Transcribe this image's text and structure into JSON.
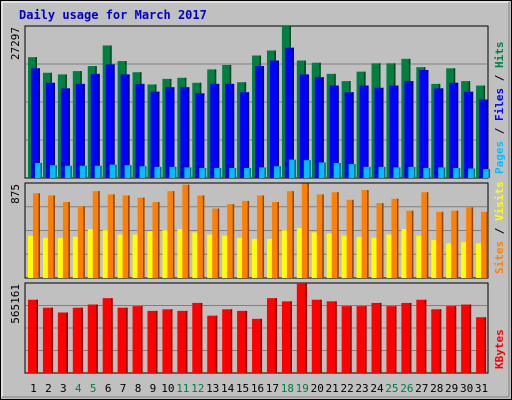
{
  "chart_data": {
    "type": "bar",
    "title": "Daily usage for March 2017",
    "categories": [
      "1",
      "2",
      "3",
      "4",
      "5",
      "6",
      "7",
      "8",
      "9",
      "10",
      "11",
      "12",
      "13",
      "14",
      "15",
      "16",
      "17",
      "18",
      "19",
      "20",
      "21",
      "22",
      "23",
      "24",
      "25",
      "26",
      "27",
      "28",
      "29",
      "30",
      "31"
    ],
    "weekend_days": [
      "4",
      "5",
      "11",
      "12",
      "18",
      "19",
      "25",
      "26"
    ],
    "panels": [
      {
        "name": "pages_files_hits",
        "ymax": 27297,
        "ymax_label": "27297",
        "legend": [
          {
            "label": "Pages",
            "color": "#00c0ff"
          },
          {
            "label": "Files",
            "color": "#0000ff"
          },
          {
            "label": "Hits",
            "color": "#008040"
          }
        ],
        "legend_sep": "/",
        "series": [
          {
            "name": "Hits",
            "color": "#008040",
            "values": [
              21700,
              18900,
              18600,
              19200,
              20100,
              23800,
              21000,
              19000,
              16800,
              17800,
              18000,
              17100,
              19500,
              20300,
              17200,
              22000,
              22900,
              27297,
              21100,
              20700,
              18700,
              17400,
              19100,
              20600,
              20600,
              21400,
              19900,
              16900,
              19700,
              17400,
              16600
            ]
          },
          {
            "name": "Files",
            "color": "#0000ff",
            "values": [
              19700,
              17100,
              16100,
              16900,
              18700,
              20400,
              18600,
              16900,
              15500,
              16300,
              16300,
              15200,
              16900,
              16900,
              15400,
              20100,
              21100,
              23400,
              18600,
              18100,
              16600,
              15400,
              16600,
              16200,
              16600,
              17400,
              19400,
              16100,
              17100,
              15500,
              14100
            ]
          },
          {
            "name": "Pages",
            "color": "#00c0ff",
            "values": [
              2700,
              2300,
              2200,
              2200,
              2200,
              2400,
              2300,
              2100,
              2000,
              2000,
              1900,
              1800,
              1800,
              1800,
              1800,
              1900,
              2100,
              3300,
              3200,
              2800,
              2700,
              2500,
              2000,
              2000,
              1900,
              2000,
              1800,
              1900,
              1800,
              1700,
              1600
            ]
          }
        ]
      },
      {
        "name": "sites_visits",
        "ymax": 875,
        "ymax_label": "875",
        "legend": [
          {
            "label": "Sites",
            "color": "#ff8000"
          },
          {
            "label": "Visits",
            "color": "#ffff00"
          }
        ],
        "legend_sep": "/",
        "series": [
          {
            "name": "Visits",
            "color": "#ffff00",
            "values": [
              390,
              370,
              370,
              380,
              450,
              440,
              400,
              400,
              430,
              440,
              450,
              420,
              400,
              390,
              370,
              360,
              360,
              440,
              460,
              420,
              410,
              390,
              380,
              370,
              400,
              450,
              390,
              350,
              320,
              330,
              320
            ]
          },
          {
            "name": "Sites",
            "color": "#ff8000",
            "values": [
              780,
              760,
              700,
              660,
              800,
              770,
              760,
              740,
              700,
              800,
              860,
              760,
              640,
              680,
              710,
              760,
              700,
              800,
              870,
              770,
              790,
              720,
              810,
              690,
              730,
              620,
              790,
              610,
              620,
              650,
              610
            ]
          }
        ]
      },
      {
        "name": "kbytes",
        "ymax": 565161,
        "ymax_label": "565161",
        "legend": [
          {
            "label": "KBytes",
            "color": "#ff0000"
          }
        ],
        "legend_sep": "",
        "series": [
          {
            "name": "KBytes",
            "color": "#ff0000",
            "values": [
              460000,
              410000,
              380000,
              410000,
              430000,
              470000,
              410000,
              420000,
              390000,
              400000,
              390000,
              440000,
              360000,
              400000,
              390000,
              340000,
              470000,
              450000,
              565161,
              460000,
              450000,
              420000,
              420000,
              440000,
              420000,
              440000,
              460000,
              400000,
              420000,
              430000,
              350000
            ]
          }
        ]
      }
    ]
  }
}
